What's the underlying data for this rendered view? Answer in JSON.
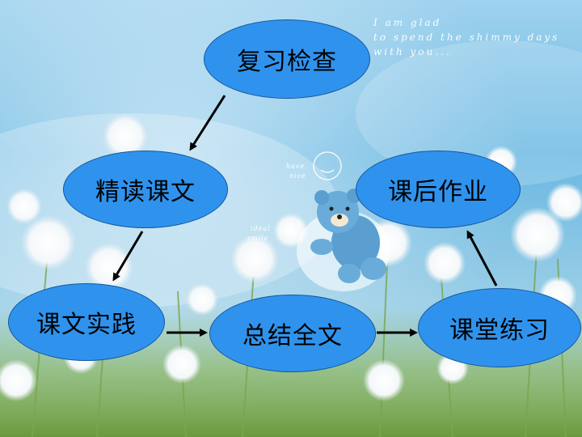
{
  "decoration": {
    "line1": "I am glad",
    "line2": "to spend the shimmy days",
    "line3": "with you...",
    "small1": "have",
    "small2": "nice",
    "small3": "ideal",
    "small4": "smile"
  },
  "nodes": {
    "review": "复习检查",
    "intensive_reading": "精读课文",
    "homework": "课后作业",
    "practice": "课文实践",
    "summary": "总结全文",
    "classroom_exercise": "课堂练习"
  },
  "colors": {
    "node_fill": "#2f93ee",
    "node_border": "#16579e",
    "arrow": "#000000"
  }
}
